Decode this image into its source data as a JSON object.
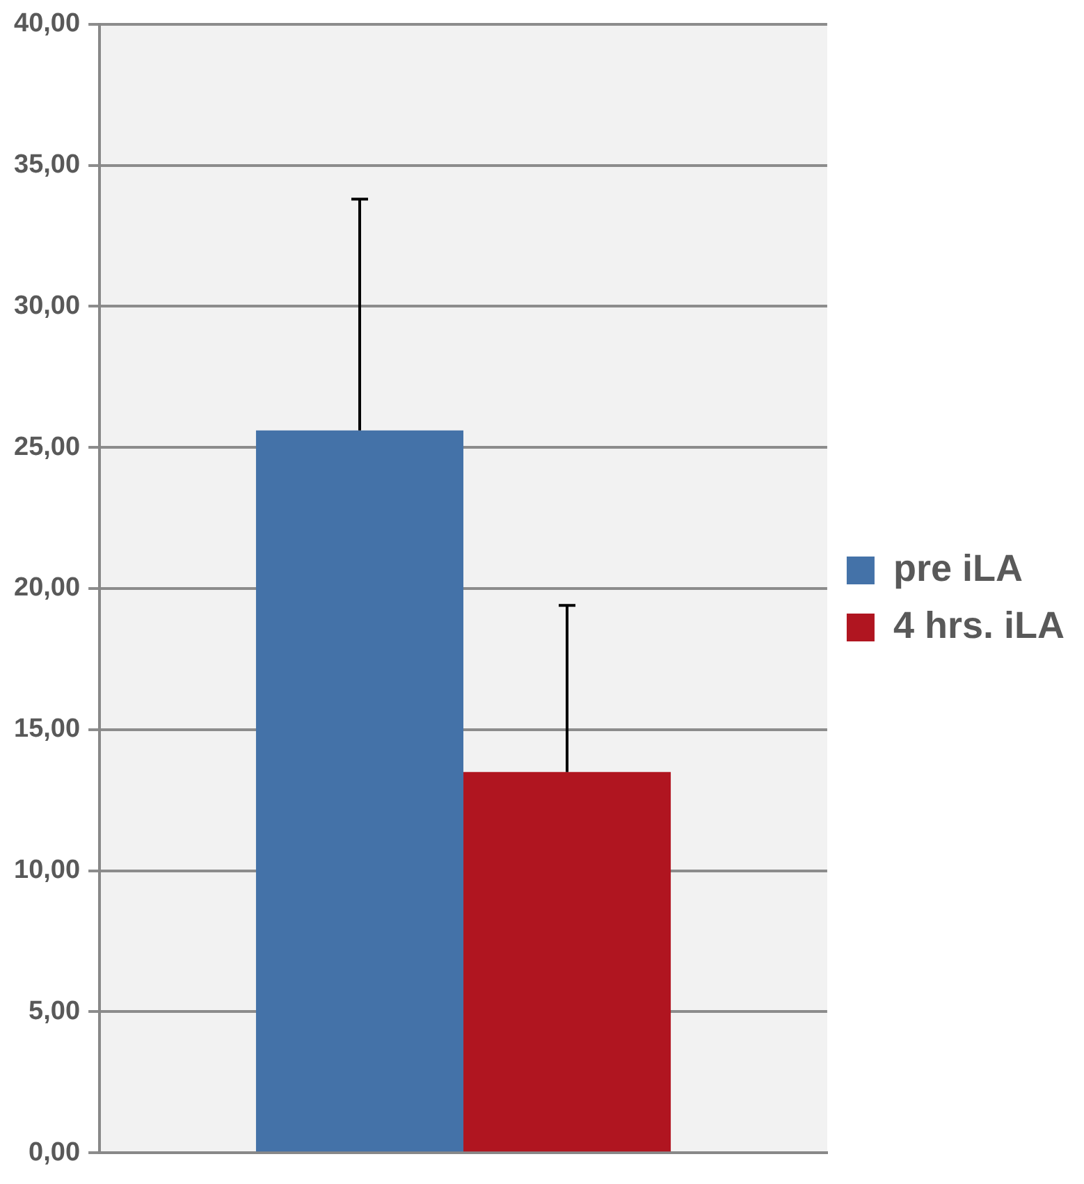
{
  "chart_data": {
    "type": "bar",
    "categories": [
      null
    ],
    "series": [
      {
        "name": "pre iLA",
        "color": "#4472a8",
        "values": [
          25.6
        ],
        "errors": [
          [
            25.6,
            33.8
          ]
        ]
      },
      {
        "name": "4 hrs. iLA",
        "color": "#b01520",
        "values": [
          13.5
        ],
        "errors": [
          [
            13.5,
            19.4
          ]
        ]
      }
    ],
    "ylim": [
      0,
      40
    ],
    "yticks": [
      {
        "value": 0,
        "label": "0,00"
      },
      {
        "value": 5,
        "label": "5,00"
      },
      {
        "value": 10,
        "label": "10,00"
      },
      {
        "value": 15,
        "label": "15,00"
      },
      {
        "value": 20,
        "label": "20,00"
      },
      {
        "value": 25,
        "label": "25,00"
      },
      {
        "value": 30,
        "label": "30,00"
      },
      {
        "value": 35,
        "label": "35,00"
      },
      {
        "value": 40,
        "label": "40,00"
      }
    ],
    "grid": "y",
    "legend": "right"
  }
}
